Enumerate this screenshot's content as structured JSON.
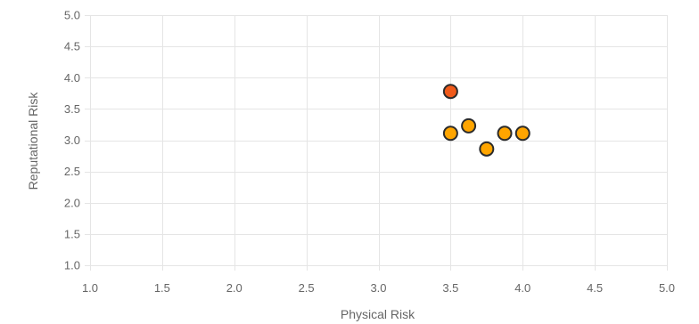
{
  "chart_data": {
    "type": "scatter",
    "xlabel": "Physical Risk",
    "ylabel": "Reputational Risk",
    "xlim": [
      1.0,
      5.0
    ],
    "ylim": [
      1.0,
      5.0
    ],
    "x_ticks": [
      "1.0",
      "1.5",
      "2.0",
      "2.5",
      "3.0",
      "3.5",
      "4.0",
      "4.5",
      "5.0"
    ],
    "y_ticks": [
      "1.0",
      "1.5",
      "2.0",
      "2.5",
      "3.0",
      "3.5",
      "4.0",
      "4.5",
      "5.0"
    ],
    "grid": true,
    "points": [
      {
        "x": 3.5,
        "y": 3.78,
        "color": "#f05a1a"
      },
      {
        "x": 3.5,
        "y": 3.11,
        "color": "#ffa500"
      },
      {
        "x": 3.625,
        "y": 3.23,
        "color": "#ffa500"
      },
      {
        "x": 3.75,
        "y": 2.86,
        "color": "#ffa500"
      },
      {
        "x": 3.875,
        "y": 3.11,
        "color": "#ffa500"
      },
      {
        "x": 4.0,
        "y": 3.11,
        "color": "#ffa500"
      }
    ]
  }
}
